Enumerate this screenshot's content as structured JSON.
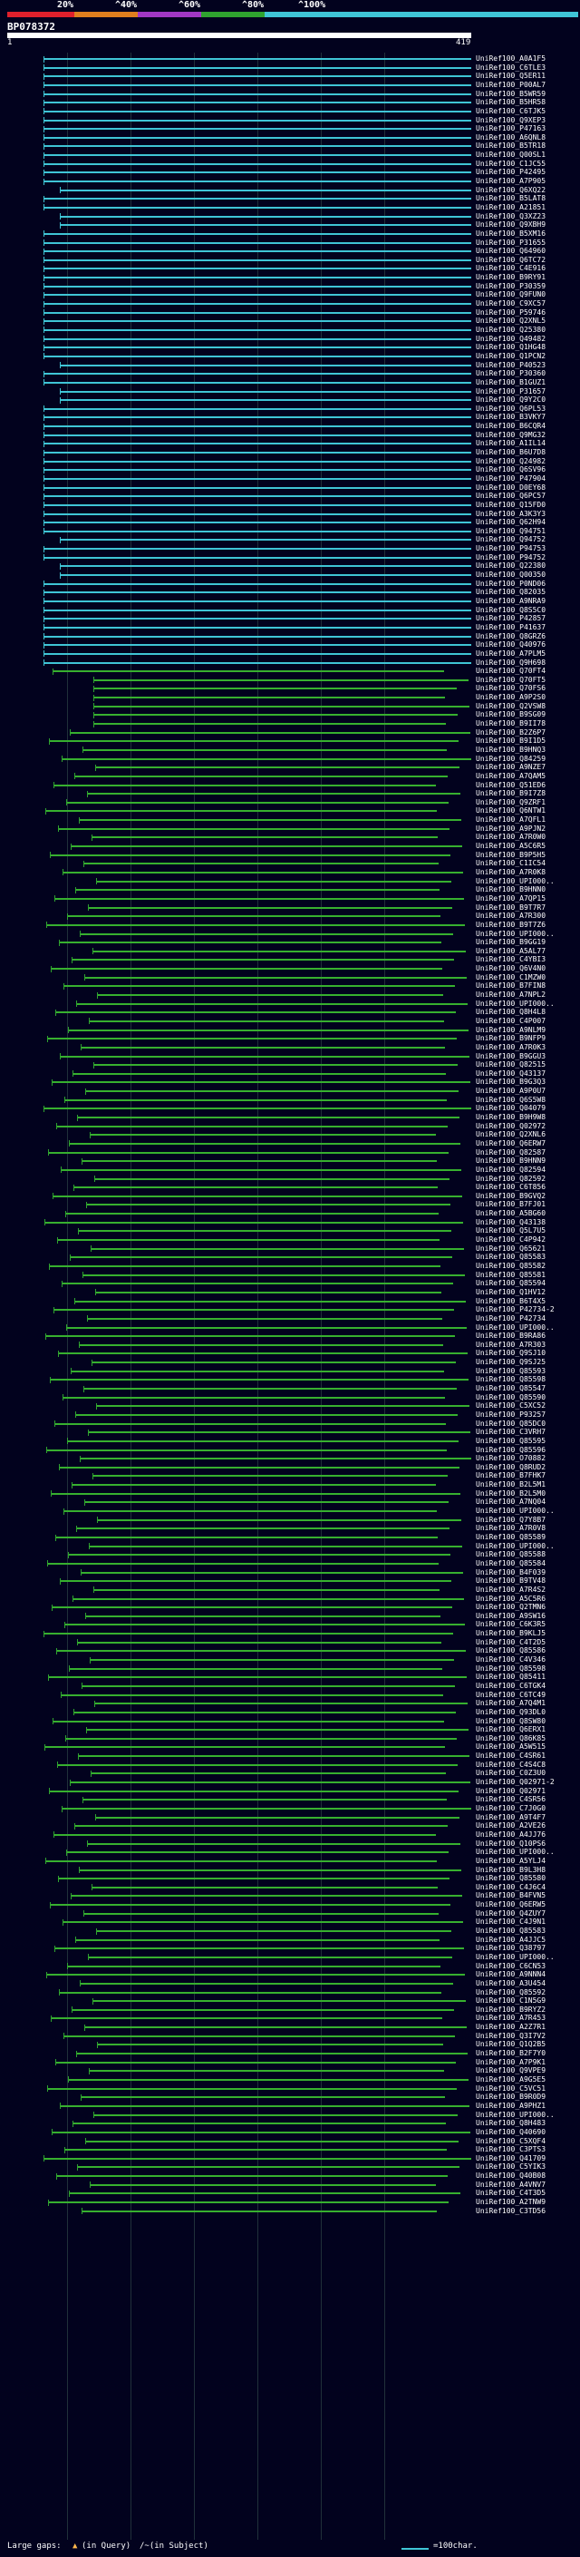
{
  "legend": {
    "percent_labels": [
      "20%",
      "^40%",
      "^60%",
      "^80%",
      "^100%"
    ],
    "band_colors": [
      "#e0202c",
      "#e07f1e",
      "#a238c4",
      "#2fa32f",
      "#3fc5d6"
    ]
  },
  "query": {
    "title": "BP078372",
    "ruler_start": "1",
    "ruler_end": "419"
  },
  "colors": {
    "identity_100": "#3fc5d6",
    "identity_80": "#37b02f",
    "tick_green": "#2fa32f",
    "gap_mark": "#ffffff"
  },
  "hits": [
    "UniRef100_A0A1F5",
    "UniRef100_C6TLE3",
    "UniRef100_Q5ER11",
    "UniRef100_P00AL7",
    "UniRef100_B5WR59",
    "UniRef100_B5HR58",
    "UniRef100_C6TJK5",
    "UniRef100_Q9XEP3",
    "UniRef100_P47163",
    "UniRef100_A6QNL8",
    "UniRef100_B5TR18",
    "UniRef100_Q00SL1",
    "UniRef100_C1JC55",
    "UniRef100_P42495",
    "UniRef100_A7P905",
    "UniRef100_Q6XQ22",
    "UniRef100_B5LAT8",
    "UniRef100_A21851",
    "UniRef100_Q3XZ23",
    "UniRef100_Q9XBH9",
    "UniRef100_B5XM16",
    "UniRef100_P31655",
    "UniRef100_Q64960",
    "UniRef100_Q6TC72",
    "UniRef100_C4E916",
    "UniRef100_B9RY91",
    "UniRef100_P30359",
    "UniRef100_Q9FUN0",
    "UniRef100_C9XC57",
    "UniRef100_P59746",
    "UniRef100_Q2XNL5",
    "UniRef100_Q25380",
    "UniRef100_Q49482",
    "UniRef100_Q1HG48",
    "UniRef100_Q1PCN2",
    "UniRef100_P40523",
    "UniRef100_P30360",
    "UniRef100_B1GUZ1",
    "UniRef100_P31657",
    "UniRef100_Q9Y2C0",
    "UniRef100_Q6PL53",
    "UniRef100_B3VKY7",
    "UniRef100_B6CQR4",
    "UniRef100_Q9MG32",
    "UniRef100_A1IL14",
    "UniRef100_B6U7D8",
    "UniRef100_Q24982",
    "UniRef100_Q6SV96",
    "UniRef100_P47904",
    "UniRef100_D0EY68",
    "UniRef100_Q6PC57",
    "UniRef100_Q15FD0",
    "UniRef100_A3K3Y3",
    "UniRef100_Q62H94",
    "UniRef100_Q94751",
    "UniRef100_Q94752",
    "UniRef100_P94753",
    "UniRef100_P94752",
    "UniRef100_Q22380",
    "UniRef100_Q00350",
    "UniRef100_P0ND06",
    "UniRef100_Q82035",
    "UniRef100_A9NRA9",
    "UniRef100_Q8S5C0",
    "UniRef100_P42857",
    "UniRef100_P41637",
    "UniRef100_Q8GRZ6",
    "UniRef100_Q40976",
    "UniRef100_A7PLM5",
    "UniRef100_Q9H698",
    "UniRef100_Q70FT4",
    "UniRef100_Q70FT5",
    "UniRef100_Q70FS6",
    "UniRef100_A9P2S0",
    "UniRef100_Q2VSW8",
    "UniRef100_B9SG09",
    "UniRef100_B9II78",
    "UniRef100_B2Z6P7",
    "UniRef100_B9I1D5",
    "UniRef100_B9HNQ3",
    "UniRef100_Q84259",
    "UniRef100_A9NZE7",
    "UniRef100_A7QAM5",
    "UniRef100_Q51ED6",
    "UniRef100_B9I7Z8",
    "UniRef100_Q9ZRF1",
    "UniRef100_Q6NTW1",
    "UniRef100_A7QFL1",
    "UniRef100_A9PJN2",
    "UniRef100_A7R0W0",
    "UniRef100_A5C6R5",
    "UniRef100_B9P5H5",
    "UniRef100_C1IC54",
    "UniRef100_A7R0K8",
    "UniRef100_UPI000..",
    "UniRef100_B9HNN0",
    "UniRef100_A7QP15",
    "UniRef100_B9T7R7",
    "UniRef100_A7R300",
    "UniRef100_B9T7Z6",
    "UniRef100_UPI000..",
    "UniRef100_B9GG19",
    "UniRef100_A5AL77",
    "UniRef100_C4YBI3",
    "UniRef100_Q6V4N0",
    "UniRef100_C1MZW0",
    "UniRef100_B7FIN8",
    "UniRef100_A7NPL2",
    "UniRef100_UPI000..",
    "UniRef100_Q8H4L8",
    "UniRef100_C4P007",
    "UniRef100_A9NLM9",
    "UniRef100_B9NFP9",
    "UniRef100_A7R0K3",
    "UniRef100_B9GGU3",
    "UniRef100_Q82515",
    "UniRef100_Q43137",
    "UniRef100_B9G3Q3",
    "UniRef100_A9P0U7",
    "UniRef100_Q6S5W8",
    "UniRef100_Q04079",
    "UniRef100_B9H9W8",
    "UniRef100_Q02972",
    "UniRef100_Q2XNL6",
    "UniRef100_Q6ERW7",
    "UniRef100_Q82587",
    "UniRef100_B9HNN9",
    "UniRef100_Q82594",
    "UniRef100_Q82592",
    "UniRef100_C6T856",
    "UniRef100_B9GVQ2",
    "UniRef100_B7FJ01",
    "UniRef100_A5BG60",
    "UniRef100_Q43138",
    "UniRef100_Q5L7U5",
    "UniRef100_C4P942",
    "UniRef100_Q65621",
    "UniRef100_Q85583",
    "UniRef100_Q85582",
    "UniRef100_Q85581",
    "UniRef100_Q85594",
    "UniRef100_Q1HV12",
    "UniRef100_B6T4X5",
    "UniRef100_P42734-2",
    "UniRef100_P42734",
    "UniRef100_UPI000..",
    "UniRef100_B9RA86",
    "UniRef100_A7R303",
    "UniRef100_Q9SJ10",
    "UniRef100_Q9SJ25",
    "UniRef100_Q85593",
    "UniRef100_Q85598",
    "UniRef100_Q85547",
    "UniRef100_Q85590",
    "UniRef100_C5XC52",
    "UniRef100_P93257",
    "UniRef100_Q85DC0",
    "UniRef100_C3VRH7",
    "UniRef100_Q85595",
    "UniRef100_Q85596",
    "UniRef100_O70882",
    "UniRef100_Q8RUD2",
    "UniRef100_B7FHK7",
    "UniRef100_B2L5M1",
    "UniRef100_B2L5M0",
    "UniRef100_A7NQ04",
    "UniRef100_UPI000..",
    "UniRef100_Q7Y8B7",
    "UniRef100_A7R0V8",
    "UniRef100_Q85589",
    "UniRef100_UPI000..",
    "UniRef100_Q85588",
    "UniRef100_Q85584",
    "UniRef100_B4F039",
    "UniRef100_B9TV48",
    "UniRef100_A7R4S2",
    "UniRef100_A5C5R6",
    "UniRef100_Q2TMN6",
    "UniRef100_A9SW16",
    "UniRef100_C6K3R5",
    "UniRef100_B9KLJ5",
    "UniRef100_C4T2D5",
    "UniRef100_Q85586",
    "UniRef100_C4V346",
    "UniRef100_Q85598",
    "UniRef100_Q85411",
    "UniRef100_C6TGK4",
    "UniRef100_C6TC49",
    "UniRef100_A7Q4M1",
    "UniRef100_Q93DL0",
    "UniRef100_Q8SW80",
    "UniRef100_Q6ERX1",
    "UniRef100_Q86K85",
    "UniRef100_A5W515",
    "UniRef100_C4SR61",
    "UniRef100_C4S4C8",
    "UniRef100_C0Z3U0",
    "UniRef100_Q02971-2",
    "UniRef100_Q02971",
    "UniRef100_C4SR56",
    "UniRef100_C7J0G0",
    "UniRef100_A9T4F7",
    "UniRef100_A2VE26",
    "UniRef100_A4JJ76",
    "UniRef100_Q10PS6",
    "UniRef100_UPI000..",
    "UniRef100_A5YLJ4",
    "UniRef100_B9L3H8",
    "UniRef100_Q85580",
    "UniRef100_C4J6C4",
    "UniRef100_B4FVN5",
    "UniRef100_Q6ERW5",
    "UniRef100_Q4ZUY7",
    "UniRef100_C4J9N1",
    "UniRef100_Q85583",
    "UniRef100_A4JJC5",
    "UniRef100_Q38797",
    "UniRef100_UPI000..",
    "UniRef100_C6CN53",
    "UniRef100_A9NNN4",
    "UniRef100_A3U454",
    "UniRef100_Q85592",
    "UniRef100_C1N5G9",
    "UniRef100_B9RYZ2",
    "UniRef100_A7R453",
    "UniRef100_A2Z7R1",
    "UniRef100_Q3I7V2",
    "UniRef100_Q1Q2B5",
    "UniRef100_B2F7Y0",
    "UniRef100_A7P9K1",
    "UniRef100_Q9VPE9",
    "UniRef100_A9G5E5",
    "UniRef100_C5VC51",
    "UniRef100_B9R0D9",
    "UniRef100_A9PHZ1",
    "UniRef100_UPI000..",
    "UniRef100_Q8H483",
    "UniRef100_Q40690",
    "UniRef100_C5XQF4",
    "UniRef100_C3PTS3",
    "UniRef100_Q41709",
    "UniRef100_C5YIK3",
    "UniRef100_Q40B08",
    "UniRef100_A4VNV7",
    "UniRef100_C4T3D5",
    "UniRef100_A2TNW9",
    "UniRef100_C3TD56"
  ],
  "footer": {
    "gaps_prefix": "Large gaps:",
    "gaps_query": "(in Query)",
    "gaps_subject": "/~(in Subject)",
    "scale_label": "=100char."
  }
}
